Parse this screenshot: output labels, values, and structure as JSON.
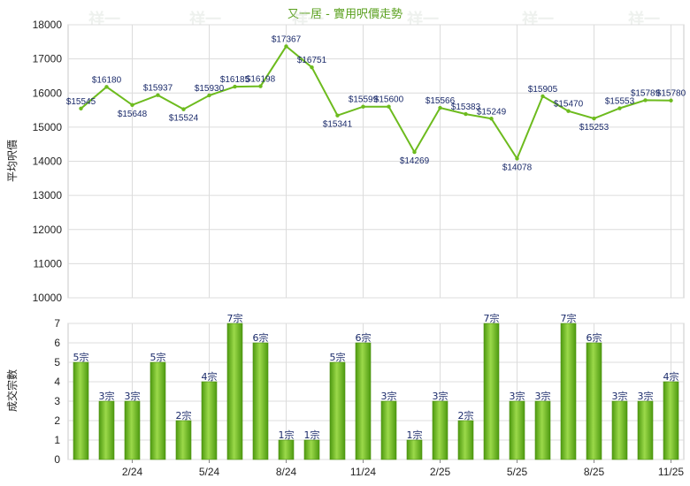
{
  "chart_data": [
    {
      "type": "line",
      "title": "又一居 - 實用呎價走勢",
      "ylabel": "平均呎價",
      "ylim": [
        10000,
        18000
      ],
      "yticks": [
        10000,
        11000,
        12000,
        13000,
        14000,
        15000,
        16000,
        17000,
        18000
      ],
      "grid": true,
      "color": "#6dbb1e",
      "points": [
        {
          "label": "$15545",
          "value": 15545
        },
        {
          "label": "$16180",
          "value": 16180
        },
        {
          "label": "$15648",
          "value": 15648
        },
        {
          "label": "$15937",
          "value": 15937
        },
        {
          "label": "$15524",
          "value": 15524
        },
        {
          "label": "$15930",
          "value": 15930
        },
        {
          "label": "$16185",
          "value": 16185
        },
        {
          "label": "$16198",
          "value": 16198
        },
        {
          "label": "$17367",
          "value": 17367
        },
        {
          "label": "$16751",
          "value": 16751
        },
        {
          "label": "$15341",
          "value": 15341
        },
        {
          "label": "$15599",
          "value": 15599
        },
        {
          "label": "$15600",
          "value": 15600
        },
        {
          "label": "$14269",
          "value": 14269
        },
        {
          "label": "$15566",
          "value": 15566
        },
        {
          "label": "$15383",
          "value": 15383
        },
        {
          "label": "$15249",
          "value": 15249
        },
        {
          "label": "$14078",
          "value": 14078
        },
        {
          "label": "$15905",
          "value": 15905
        },
        {
          "label": "$15470",
          "value": 15470
        },
        {
          "label": "$15253",
          "value": 15253
        },
        {
          "label": "$15553",
          "value": 15553
        },
        {
          "label": "$15789",
          "value": 15789
        },
        {
          "label": "$15780",
          "value": 15780
        }
      ]
    },
    {
      "type": "bar",
      "ylabel": "成交宗數",
      "ylim": [
        0,
        7
      ],
      "yticks": [
        0,
        1,
        2,
        3,
        4,
        5,
        6,
        7
      ],
      "grid": true,
      "color": "#6dbb1e",
      "xtick_labels": [
        "2/24",
        "5/24",
        "8/24",
        "11/24",
        "2/25",
        "5/25",
        "8/25",
        "11/25"
      ],
      "bars": [
        {
          "label": "5宗",
          "value": 5
        },
        {
          "label": "3宗",
          "value": 3
        },
        {
          "label": "3宗",
          "value": 3
        },
        {
          "label": "5宗",
          "value": 5
        },
        {
          "label": "2宗",
          "value": 2
        },
        {
          "label": "4宗",
          "value": 4
        },
        {
          "label": "7宗",
          "value": 7
        },
        {
          "label": "6宗",
          "value": 6
        },
        {
          "label": "1宗",
          "value": 1
        },
        {
          "label": "1宗",
          "value": 1
        },
        {
          "label": "5宗",
          "value": 5
        },
        {
          "label": "6宗",
          "value": 6
        },
        {
          "label": "3宗",
          "value": 3
        },
        {
          "label": "1宗",
          "value": 1
        },
        {
          "label": "3宗",
          "value": 3
        },
        {
          "label": "2宗",
          "value": 2
        },
        {
          "label": "7宗",
          "value": 7
        },
        {
          "label": "3宗",
          "value": 3
        },
        {
          "label": "3宗",
          "value": 3
        },
        {
          "label": "7宗",
          "value": 7
        },
        {
          "label": "6宗",
          "value": 6
        },
        {
          "label": "3宗",
          "value": 3
        },
        {
          "label": "3宗",
          "value": 3
        },
        {
          "label": "4宗",
          "value": 4
        }
      ]
    }
  ],
  "watermark": "祥一"
}
